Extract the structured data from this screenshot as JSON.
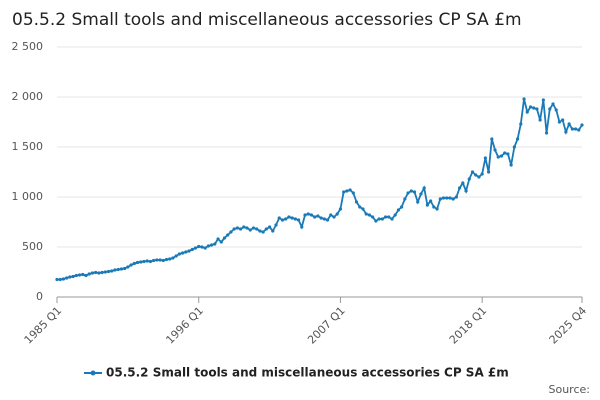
{
  "chart_data": {
    "type": "line",
    "title": "05.5.2 Small tools and miscellaneous accessories CP SA £m",
    "source": "Source:",
    "categories": [
      "1985 Q1",
      null,
      null,
      null,
      null,
      null,
      null,
      null,
      null,
      null,
      null,
      null,
      null,
      null,
      null,
      null,
      null,
      null,
      null,
      null,
      null,
      null,
      null,
      null,
      null,
      null,
      null,
      null,
      null,
      null,
      null,
      null,
      null,
      null,
      null,
      null,
      null,
      null,
      null,
      null,
      null,
      null,
      null,
      null,
      "1996 Q1",
      null,
      null,
      null,
      null,
      null,
      null,
      null,
      null,
      null,
      null,
      null,
      null,
      null,
      null,
      null,
      null,
      null,
      null,
      null,
      null,
      null,
      null,
      null,
      null,
      null,
      null,
      null,
      null,
      null,
      null,
      null,
      null,
      null,
      null,
      null,
      null,
      null,
      null,
      null,
      null,
      null,
      null,
      null,
      "2007 Q1",
      null,
      null,
      null,
      null,
      null,
      null,
      null,
      null,
      null,
      null,
      null,
      null,
      null,
      null,
      null,
      null,
      null,
      null,
      null,
      null,
      null,
      null,
      null,
      null,
      null,
      null,
      null,
      null,
      null,
      null,
      null,
      null,
      null,
      null,
      null,
      null,
      null,
      null,
      null,
      null,
      null,
      null,
      null,
      "2018 Q1",
      null,
      null,
      null,
      null,
      null,
      null,
      null,
      null,
      null,
      null,
      null,
      null,
      null,
      null,
      null,
      null,
      null,
      null,
      null,
      null,
      null,
      null,
      null,
      null,
      null,
      null,
      null,
      null,
      null,
      null,
      "2025 Q4"
    ],
    "series": [
      {
        "name": "05.5.2 Small tools and miscellaneous accessories CP SA £m",
        "color": "#1a7ab8",
        "values": [
          175,
          175,
          180,
          190,
          200,
          205,
          215,
          220,
          225,
          215,
          230,
          240,
          245,
          240,
          245,
          250,
          255,
          260,
          270,
          275,
          280,
          285,
          300,
          320,
          335,
          345,
          350,
          355,
          360,
          355,
          365,
          370,
          370,
          365,
          375,
          380,
          390,
          410,
          430,
          440,
          450,
          460,
          475,
          490,
          505,
          500,
          490,
          510,
          520,
          530,
          580,
          550,
          590,
          620,
          650,
          680,
          690,
          680,
          700,
          690,
          670,
          690,
          680,
          660,
          650,
          680,
          700,
          660,
          720,
          790,
          770,
          780,
          800,
          790,
          780,
          770,
          700,
          820,
          830,
          820,
          800,
          810,
          790,
          780,
          770,
          820,
          800,
          830,
          880,
          1050,
          1060,
          1070,
          1040,
          950,
          900,
          880,
          830,
          820,
          800,
          760,
          780,
          780,
          800,
          800,
          780,
          820,
          870,
          900,
          980,
          1040,
          1060,
          1050,
          950,
          1030,
          1090,
          920,
          960,
          900,
          880,
          980,
          990,
          990,
          990,
          980,
          1000,
          1090,
          1140,
          1060,
          1180,
          1250,
          1220,
          1200,
          1230,
          1390,
          1250,
          1580,
          1470,
          1400,
          1410,
          1440,
          1430,
          1320,
          1500,
          1580,
          1730,
          1980,
          1850,
          1900,
          1890,
          1880,
          1770,
          1970,
          1640,
          1880,
          1930,
          1870,
          1750,
          1770,
          1650,
          1730,
          1680,
          1680,
          1670,
          1720
        ]
      }
    ],
    "ylim": [
      0,
      2500
    ],
    "yticks": [
      0,
      500,
      {
        "value": 1000,
        "label": "1 000"
      },
      {
        "value": 1500,
        "label": "1 500"
      },
      {
        "value": 2000,
        "label": "2 000"
      },
      {
        "value": 2500,
        "label": "2 500"
      }
    ],
    "grid": true
  }
}
